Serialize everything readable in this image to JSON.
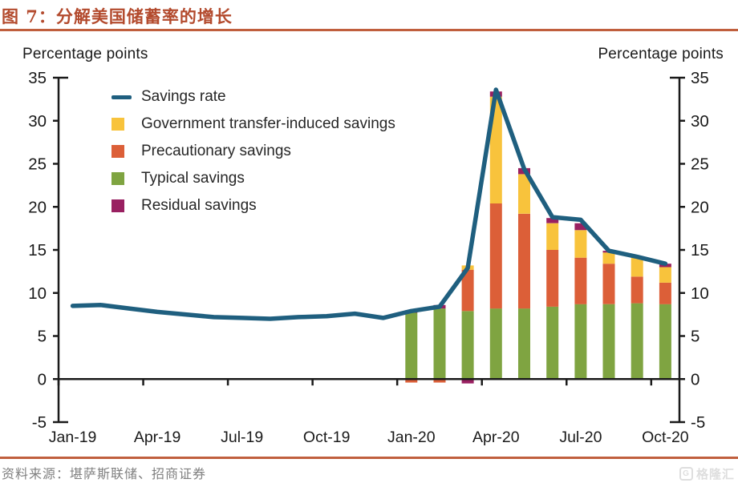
{
  "header": {
    "title": "图 7：分解美国储蓄率的增长"
  },
  "axis_titles": {
    "left": "Percentage points",
    "right": "Percentage points"
  },
  "footer": {
    "source": "资料来源：堪萨斯联储、招商证券",
    "watermark": "格隆汇",
    "watermark_icon": "G"
  },
  "colors": {
    "accent_rust": "#c05f3d",
    "title_rust": "#b34a2d",
    "line": "#1f5f7f",
    "government": "#f8c33c",
    "precautionary": "#dc5f38",
    "typical": "#7fa441",
    "residual": "#992061",
    "axis_ink": "#1a1a1a",
    "source_gray": "#808080",
    "watermark_gray": "#dedede"
  },
  "chart_data": {
    "type": "line+stacked-bar",
    "title": "图 7：分解美国储蓄率的增长",
    "ylabel_left": "Percentage points",
    "ylabel_right": "Percentage points",
    "ylim": [
      -5,
      35
    ],
    "ytick_step": 5,
    "grid": false,
    "legend_position": "top-left-inside",
    "x": [
      "Jan-19",
      "Feb-19",
      "Mar-19",
      "Apr-19",
      "May-19",
      "Jun-19",
      "Jul-19",
      "Aug-19",
      "Sep-19",
      "Oct-19",
      "Nov-19",
      "Dec-19",
      "Jan-20",
      "Feb-20",
      "Mar-20",
      "Apr-20",
      "May-20",
      "Jun-20",
      "Jul-20",
      "Aug-20",
      "Sep-20",
      "Oct-20"
    ],
    "x_labels": [
      "Jan-19",
      "Apr-19",
      "Jul-19",
      "Oct-19",
      "Jan-20",
      "Apr-20",
      "Jul-20",
      "Oct-20"
    ],
    "x_label_every": 3,
    "line_series": {
      "name": "Savings rate",
      "values": [
        8.5,
        8.6,
        8.2,
        7.8,
        7.5,
        7.2,
        7.1,
        7.0,
        7.2,
        7.3,
        7.6,
        7.1,
        7.9,
        8.4,
        12.9,
        33.6,
        24.4,
        18.8,
        18.5,
        14.9,
        14.2,
        13.4
      ]
    },
    "bar_series": [
      {
        "name": "Typical savings",
        "color_key": "typical",
        "values": [
          null,
          null,
          null,
          null,
          null,
          null,
          null,
          null,
          null,
          null,
          null,
          null,
          7.7,
          8.2,
          7.9,
          8.2,
          8.2,
          8.4,
          8.7,
          8.7,
          8.8,
          8.7
        ]
      },
      {
        "name": "Precautionary savings",
        "color_key": "precautionary",
        "values": [
          null,
          null,
          null,
          null,
          null,
          null,
          null,
          null,
          null,
          null,
          null,
          null,
          -0.4,
          -0.4,
          4.8,
          12.2,
          11.0,
          6.6,
          5.4,
          4.7,
          3.1,
          2.5
        ]
      },
      {
        "name": "Government transfer-induced savings",
        "color_key": "government",
        "values": [
          null,
          null,
          null,
          null,
          null,
          null,
          null,
          null,
          null,
          null,
          null,
          null,
          0,
          0,
          0.5,
          12.4,
          4.6,
          3.1,
          3.2,
          1.3,
          2.3,
          1.8
        ]
      },
      {
        "name": "Residual savings",
        "color_key": "residual",
        "values": [
          null,
          null,
          null,
          null,
          null,
          null,
          null,
          null,
          null,
          null,
          null,
          null,
          0.3,
          0.4,
          -0.5,
          0.6,
          0.7,
          0.6,
          0.8,
          0.2,
          0.1,
          0.4
        ]
      }
    ],
    "legend": [
      {
        "label": "Savings rate",
        "color_key": "line",
        "swatch": "line"
      },
      {
        "label": "Government transfer-induced savings",
        "color_key": "government",
        "swatch": "square"
      },
      {
        "label": "Precautionary savings",
        "color_key": "precautionary",
        "swatch": "square"
      },
      {
        "label": "Typical savings",
        "color_key": "typical",
        "swatch": "square"
      },
      {
        "label": "Residual savings",
        "color_key": "residual",
        "swatch": "square"
      }
    ]
  }
}
